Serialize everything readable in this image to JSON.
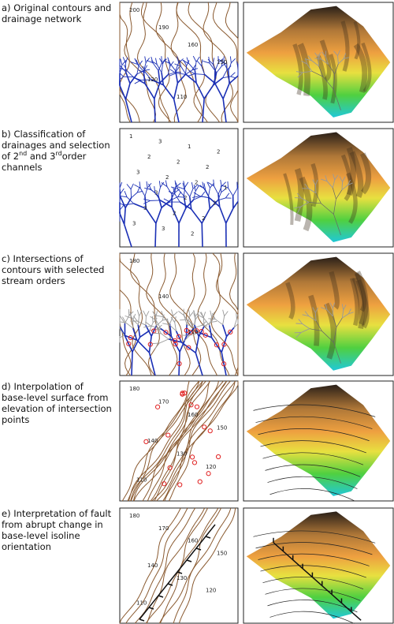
{
  "panels": [
    {
      "caption": [
        [
          "a) Original contours and"
        ],
        [
          "drainage network"
        ]
      ],
      "map_labels": [
        "200",
        "190",
        "160",
        "150",
        "120",
        "110"
      ]
    },
    {
      "caption": [
        [
          "b) Classification of"
        ],
        [
          "drainages and selection"
        ],
        [
          "of 2",
          {
            "text": "nd",
            "sup": true
          },
          " and 3",
          {
            "text": "rd",
            "sup": true
          },
          "order"
        ],
        [
          "channels"
        ]
      ],
      "map_labels": [
        "1",
        "3",
        "1",
        "2",
        "2",
        "2",
        "2",
        "3",
        "2",
        "2",
        "1",
        "3",
        "2",
        "2",
        "3",
        "2",
        "2",
        "3",
        "3",
        "2"
      ]
    },
    {
      "caption": [
        [
          "c) Intersections of"
        ],
        [
          "contours with selected"
        ],
        [
          "stream orders"
        ]
      ],
      "map_labels": [
        "180",
        "140",
        "110"
      ]
    },
    {
      "caption": [
        [
          "d) Interpolation of"
        ],
        [
          "base-level surface from"
        ],
        [
          "elevation of intersection"
        ],
        [
          "points"
        ]
      ],
      "map_labels": [
        "180",
        "170",
        "160",
        "150",
        "140",
        "130",
        "120",
        "110"
      ]
    },
    {
      "caption": [
        [
          "e) Interpretation of fault"
        ],
        [
          "from abrupt change in"
        ],
        [
          "base-level isoline"
        ],
        [
          "orientation"
        ]
      ],
      "map_labels": [
        "180",
        "170",
        "160",
        "150",
        "140",
        "130",
        "120",
        "110"
      ]
    }
  ]
}
